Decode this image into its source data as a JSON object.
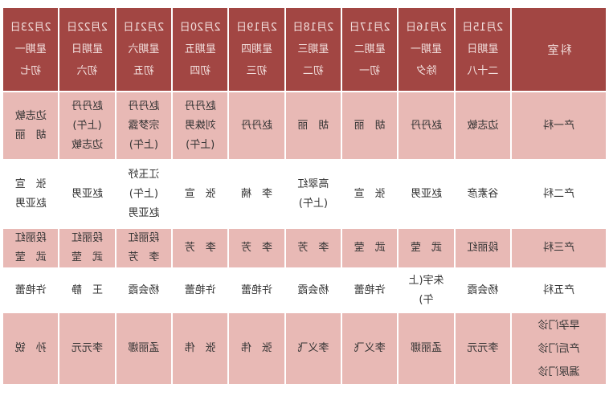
{
  "page": {
    "background": "#ffffff",
    "mirrored_image": true
  },
  "colors": {
    "header_bg": "#a24643",
    "header_text": "#f2dfdd",
    "row_pink": "#e8b9b5",
    "row_white": "#ffffff",
    "body_text": "#333333",
    "grid_line": "#ffffff"
  },
  "table": {
    "dept_header": "科室",
    "columns": [
      {
        "date": "2月15日",
        "weekday": "星期日",
        "lunar": "二十八"
      },
      {
        "date": "2月16日",
        "weekday": "星期一",
        "lunar": "除夕"
      },
      {
        "date": "2月17日",
        "weekday": "星期二",
        "lunar": "初一"
      },
      {
        "date": "2月18日",
        "weekday": "星期三",
        "lunar": "初二"
      },
      {
        "date": "2月19日",
        "weekday": "星期四",
        "lunar": "初三"
      },
      {
        "date": "2月20日",
        "weekday": "星期五",
        "lunar": "初四"
      },
      {
        "date": "2月21日",
        "weekday": "星期六",
        "lunar": "初五"
      },
      {
        "date": "2月22日",
        "weekday": "星期日",
        "lunar": "初六"
      },
      {
        "date": "2月23日",
        "weekday": "星期一",
        "lunar": "初七"
      }
    ],
    "rows": [
      {
        "dept": [
          "产一科"
        ],
        "shaded": true,
        "cells": [
          [
            "边志敏"
          ],
          [
            "赵丹丹"
          ],
          [
            "胡　丽"
          ],
          [
            "胡　丽"
          ],
          [
            "赵丹丹"
          ],
          [
            "赵丹丹",
            "刘姝男",
            "(上午)"
          ],
          [
            "赵丹丹",
            "宗梦露",
            "(上午)"
          ],
          [
            "赵丹丹",
            "(上午)",
            "边志敏"
          ],
          [
            "边志敏",
            "胡　丽"
          ]
        ]
      },
      {
        "dept": [
          "产二科"
        ],
        "shaded": false,
        "cells": [
          [
            "谷素彦"
          ],
          [
            "赵亚男"
          ],
          [
            "张　宣"
          ],
          [
            "高翠红",
            "(上午)"
          ],
          [
            "李　楠"
          ],
          [
            "张　宣"
          ],
          [
            "江玉妤",
            "(上午)",
            "赵亚男"
          ],
          [
            "赵亚男"
          ],
          [
            "张　宣",
            "赵亚男"
          ]
        ]
      },
      {
        "dept": [
          "产三科"
        ],
        "shaded": true,
        "cells": [
          [
            "段丽红"
          ],
          [
            "武　莹"
          ],
          [
            "武　莹"
          ],
          [
            "李　芳"
          ],
          [
            "李　芳"
          ],
          [
            "李　芳"
          ],
          [
            "段丽红",
            "李　芳"
          ],
          [
            "段丽红",
            "武　莹"
          ],
          [
            "段丽红",
            "武　莹"
          ]
        ]
      },
      {
        "dept": [
          "产五科"
        ],
        "shaded": false,
        "cells": [
          [
            "杨会霞"
          ],
          [
            "朱宇(上",
            "午)"
          ],
          [
            "许艳蕾"
          ],
          [
            "杨会霞"
          ],
          [
            "许艳蕾"
          ],
          [
            "许艳蕾"
          ],
          [
            "杨会霞"
          ],
          [
            "王　静"
          ],
          [
            "许艳蕾"
          ]
        ]
      },
      {
        "dept": [
          "早孕门诊",
          "产后门诊",
          "漏尿门诊"
        ],
        "shaded": true,
        "cells": [
          [
            "李元元"
          ],
          [
            "孟丽娜"
          ],
          [
            "李义飞"
          ],
          [
            "李义飞"
          ],
          [
            "张　伟"
          ],
          [
            "张　伟"
          ],
          [
            "孟丽娜"
          ],
          [
            "李元元"
          ],
          [
            "孙　锐"
          ]
        ]
      }
    ]
  }
}
